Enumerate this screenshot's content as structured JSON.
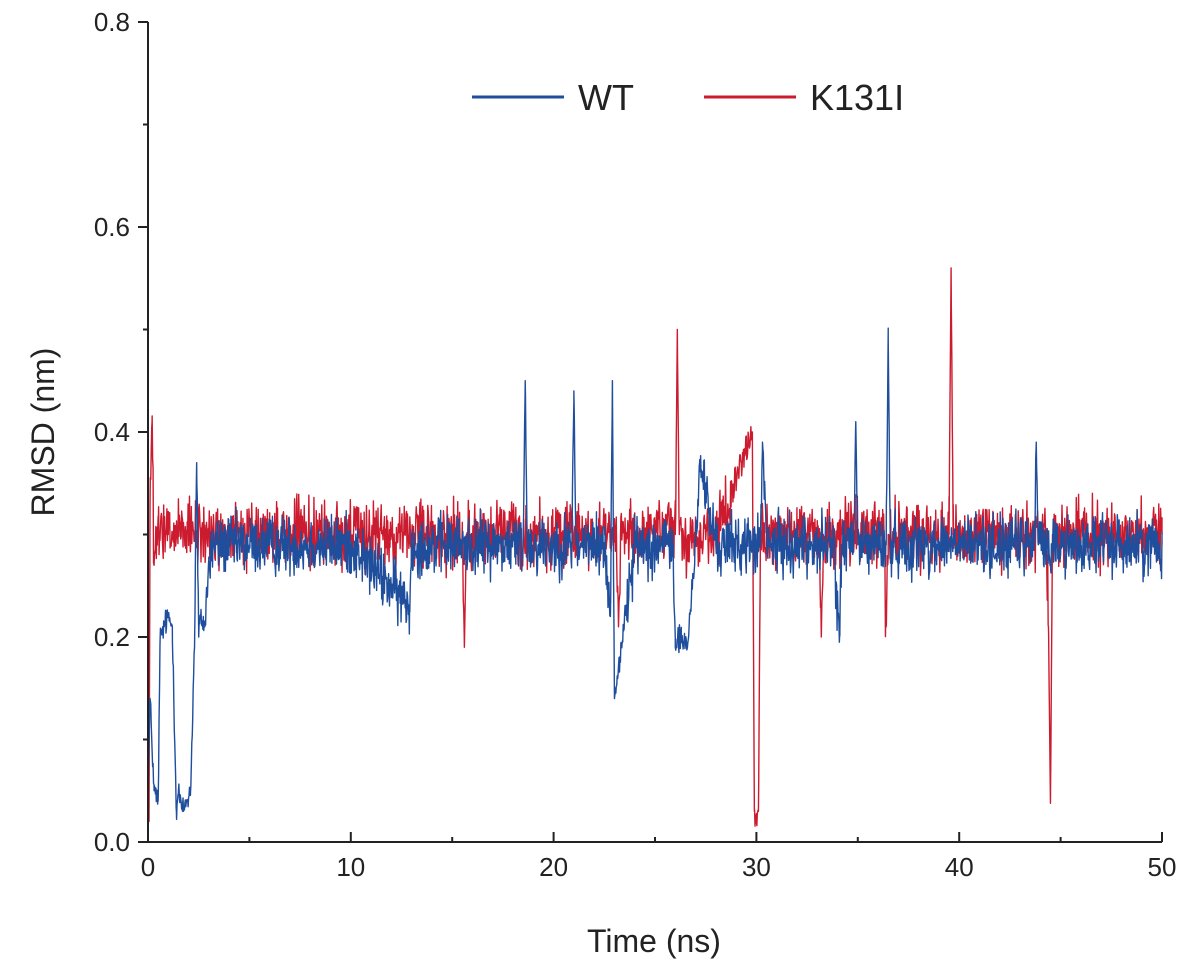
{
  "chart_data": {
    "type": "line",
    "title": "",
    "xlabel": "Time (ns)",
    "ylabel": "RMSD (nm)",
    "xlim": [
      0,
      50
    ],
    "ylim": [
      0,
      0.8
    ],
    "xticks": [
      0,
      10,
      20,
      30,
      40,
      50
    ],
    "xtick_labels": [
      "0",
      "10",
      "20",
      "30",
      "40",
      "50"
    ],
    "yticks": [
      0.0,
      0.2,
      0.4,
      0.6,
      0.8
    ],
    "ytick_labels": [
      "0.0",
      "0.2",
      "0.4",
      "0.6",
      "0.8"
    ],
    "grid": false,
    "legend_position": "top-center",
    "series": [
      {
        "name": "WT",
        "color": "#1f4e9c",
        "baseline": 0.29,
        "noise": 0.022,
        "x": [
          0,
          0.1,
          0.3,
          0.5,
          0.6,
          0.8,
          1.0,
          1.2,
          1.4,
          1.5,
          1.7,
          1.9,
          2.1,
          2.3,
          2.4,
          2.5,
          2.6,
          2.8,
          3.0,
          3.2,
          4,
          6,
          8,
          10,
          12.9,
          13.0,
          15,
          18.5,
          18.6,
          18.7,
          20.9,
          21.0,
          21.1,
          22.5,
          22.8,
          22.9,
          23.0,
          24.0,
          25.9,
          26.0,
          26.3,
          26.6,
          27.0,
          27.2,
          28,
          30.2,
          30.3,
          30.5,
          33.8,
          34.1,
          34.2,
          34.8,
          34.9,
          35.0,
          36.4,
          36.5,
          36.6,
          43.7,
          43.8,
          43.9,
          46,
          50
        ],
        "y": [
          0.05,
          0.14,
          0.05,
          0.04,
          0.2,
          0.21,
          0.22,
          0.21,
          0.03,
          0.05,
          0.03,
          0.04,
          0.05,
          0.2,
          0.37,
          0.2,
          0.22,
          0.21,
          0.27,
          0.29,
          0.29,
          0.29,
          0.29,
          0.29,
          0.23,
          0.29,
          0.29,
          0.29,
          0.45,
          0.29,
          0.29,
          0.44,
          0.29,
          0.29,
          0.22,
          0.45,
          0.14,
          0.29,
          0.29,
          0.19,
          0.2,
          0.19,
          0.29,
          0.37,
          0.29,
          0.29,
          0.39,
          0.29,
          0.29,
          0.2,
          0.29,
          0.29,
          0.41,
          0.29,
          0.29,
          0.49,
          0.29,
          0.29,
          0.39,
          0.29,
          0.29,
          0.29
        ]
      },
      {
        "name": "K131I",
        "color": "#cc1a2e",
        "baseline": 0.3,
        "noise": 0.024,
        "x": [
          0,
          0.05,
          0.1,
          0.2,
          0.3,
          0.5,
          0.8,
          1.0,
          2.0,
          4,
          6,
          8,
          10,
          12,
          15.5,
          15.6,
          15.7,
          18,
          20,
          22,
          23.1,
          23.2,
          23.3,
          25,
          26.0,
          26.1,
          26.2,
          28,
          29.8,
          29.85,
          29.9,
          30.0,
          30.1,
          30.2,
          32,
          33.1,
          33.2,
          33.3,
          35,
          36.3,
          36.4,
          36.5,
          38,
          39.5,
          39.6,
          39.7,
          42,
          44.3,
          44.4,
          44.5,
          44.6,
          47,
          50
        ],
        "y": [
          0.1,
          0.02,
          0.33,
          0.41,
          0.27,
          0.3,
          0.3,
          0.3,
          0.3,
          0.3,
          0.3,
          0.3,
          0.3,
          0.3,
          0.3,
          0.19,
          0.3,
          0.3,
          0.3,
          0.3,
          0.3,
          0.21,
          0.3,
          0.3,
          0.3,
          0.5,
          0.3,
          0.3,
          0.4,
          0.22,
          0.03,
          0.02,
          0.03,
          0.3,
          0.3,
          0.3,
          0.2,
          0.3,
          0.3,
          0.3,
          0.21,
          0.3,
          0.3,
          0.3,
          0.56,
          0.3,
          0.3,
          0.3,
          0.21,
          0.04,
          0.3,
          0.3,
          0.3
        ]
      }
    ]
  }
}
